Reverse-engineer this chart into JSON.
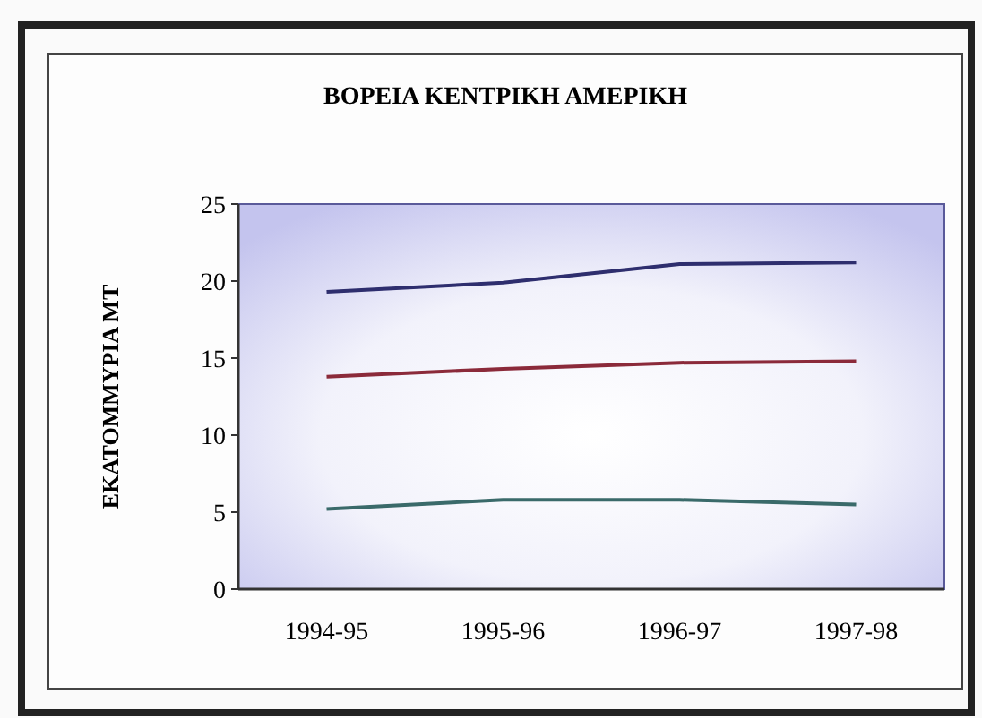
{
  "chart_data": {
    "type": "line",
    "title": "ΒΟΡΕΙΑ ΚΕΝΤΡΙΚΗ ΑΜΕΡΙΚΗ",
    "ylabel": "ΕΚΑΤΟΜΜΥΡΙΑ ΜΤ",
    "categories": [
      "1994-95",
      "1995-96",
      "1996-97",
      "1997-98"
    ],
    "series": [
      {
        "color": "#2e2e6e",
        "values": [
          19.3,
          19.9,
          21.1,
          21.2
        ]
      },
      {
        "color": "#8b2a3a",
        "values": [
          13.8,
          14.3,
          14.7,
          14.8
        ]
      },
      {
        "color": "#3a6a6a",
        "values": [
          5.2,
          5.8,
          5.8,
          5.5
        ]
      }
    ],
    "ylim": [
      0,
      25
    ],
    "yticks": [
      0,
      5,
      10,
      15,
      20,
      25
    ],
    "grid": false,
    "legend": false,
    "marker": "none",
    "line_style": "solid"
  }
}
